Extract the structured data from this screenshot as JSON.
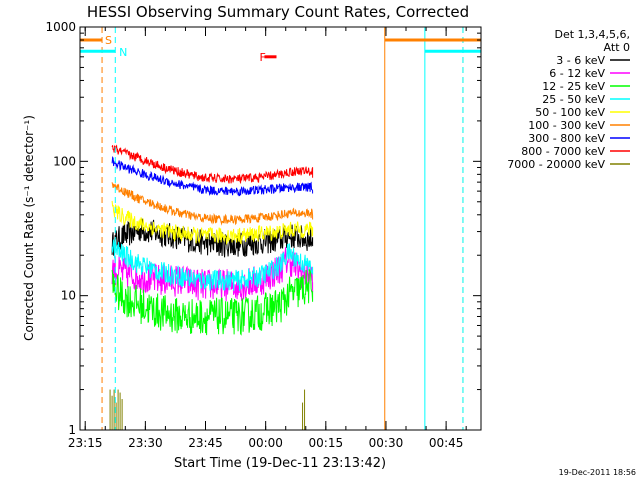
{
  "chart_data": {
    "type": "line",
    "title": "HESSI Observing Summary Count Rates, Corrected",
    "xlabel": "Start Time (19-Dec-11 23:13:42)",
    "ylabel": "Corrected Count Rate (s⁻¹ detector⁻¹)",
    "y_scale": "log",
    "ylim": [
      1,
      1000
    ],
    "y_ticks": [
      {
        "value": 1,
        "label": "1"
      },
      {
        "value": 10,
        "label": "10"
      },
      {
        "value": 100,
        "label": "100"
      },
      {
        "value": 1000,
        "label": "1000"
      }
    ],
    "x_unit": "minutes after 23:13:42",
    "xlim": [
      0,
      100
    ],
    "x_ticks": [
      {
        "t": 1.3,
        "label": "23:15"
      },
      {
        "t": 16.3,
        "label": "23:30"
      },
      {
        "t": 31.3,
        "label": "23:45"
      },
      {
        "t": 46.3,
        "label": "00:00"
      },
      {
        "t": 61.3,
        "label": "00:15"
      },
      {
        "t": 76.3,
        "label": "00:30"
      },
      {
        "t": 91.3,
        "label": "00:45"
      }
    ],
    "legend": {
      "header": [
        "Det 1,3,4,5,6,",
        "Att 0"
      ],
      "position": "right"
    },
    "series": [
      {
        "name": "3 - 6 keV",
        "color": "#000000",
        "t": [
          8,
          10,
          15,
          20,
          25,
          30,
          35,
          40,
          45,
          50,
          52,
          55,
          58
        ],
        "values": [
          24,
          27,
          31,
          29,
          27,
          25,
          24,
          24,
          25,
          26,
          28,
          27,
          26
        ]
      },
      {
        "name": "6 - 12 keV",
        "color": "#ff00ff",
        "t": [
          8,
          10,
          15,
          20,
          25,
          30,
          35,
          40,
          45,
          50,
          52,
          55,
          58
        ],
        "values": [
          16,
          15,
          14,
          13,
          13,
          12,
          12,
          12,
          13,
          16,
          19,
          15,
          14
        ]
      },
      {
        "name": "12 - 25 keV",
        "color": "#00ff00",
        "t": [
          8,
          10,
          15,
          20,
          25,
          30,
          35,
          40,
          45,
          50,
          52,
          55,
          58
        ],
        "values": [
          12,
          10,
          8.5,
          7.5,
          7,
          7,
          7,
          7,
          7.5,
          8.5,
          10,
          11,
          12
        ]
      },
      {
        "name": "25 - 50 keV",
        "color": "#00ffff",
        "t": [
          8,
          10,
          15,
          20,
          25,
          30,
          35,
          40,
          45,
          50,
          52,
          55,
          58
        ],
        "values": [
          23,
          21,
          17,
          15,
          14,
          13,
          13,
          13,
          14,
          17,
          21,
          18,
          16
        ]
      },
      {
        "name": "50 - 100 keV",
        "color": "#ffff00",
        "t": [
          8,
          10,
          15,
          20,
          25,
          30,
          35,
          40,
          45,
          50,
          52,
          55,
          58
        ],
        "values": [
          45,
          40,
          34,
          31,
          29,
          28,
          28,
          28,
          29,
          30,
          31,
          31,
          31
        ]
      },
      {
        "name": "100 - 300 keV",
        "color": "#ff8000",
        "t": [
          8,
          10,
          15,
          20,
          25,
          30,
          35,
          40,
          45,
          50,
          52,
          55,
          58
        ],
        "values": [
          68,
          62,
          52,
          46,
          41,
          38,
          37,
          37,
          38,
          40,
          41,
          41,
          41
        ]
      },
      {
        "name": "300 - 800 keV",
        "color": "#0000ff",
        "t": [
          8,
          10,
          15,
          20,
          25,
          30,
          35,
          40,
          45,
          50,
          52,
          55,
          58
        ],
        "values": [
          100,
          93,
          82,
          73,
          67,
          62,
          60,
          60,
          61,
          63,
          64,
          64,
          64
        ]
      },
      {
        "name": "800 - 7000 keV",
        "color": "#ff0000",
        "t": [
          8,
          10,
          15,
          20,
          25,
          30,
          35,
          40,
          45,
          50,
          52,
          55,
          58
        ],
        "values": [
          126,
          118,
          105,
          92,
          83,
          76,
          74,
          74,
          76,
          80,
          83,
          85,
          84
        ]
      },
      {
        "name": "7000 - 20000 keV",
        "color": "#808000",
        "t": [
          7.5,
          8,
          8.5,
          9,
          9.5,
          10,
          10.5,
          55.5,
          56
        ],
        "values": [
          2,
          1.8,
          2,
          1.6,
          2,
          1.9,
          1.7,
          1.6,
          2
        ]
      }
    ],
    "annotations": [
      {
        "label": "S",
        "color": "#ff8000",
        "t": 5.5,
        "level": 800
      },
      {
        "label": "N",
        "color": "#00ffff",
        "t": 9,
        "level": 650
      },
      {
        "label": "F",
        "color": "#ff0000",
        "t": 44,
        "level": 600
      }
    ],
    "state_bars": [
      {
        "color": "#ff8000",
        "t_start": 0,
        "t_end": 5.5,
        "level": 800
      },
      {
        "color": "#00ffff",
        "t_start": 0,
        "t_end": 8.8,
        "level": 660
      },
      {
        "color": "#ff8000",
        "t_start": 76,
        "t_end": 100,
        "level": 800
      },
      {
        "color": "#00ffff",
        "t_start": 86,
        "t_end": 100,
        "level": 660
      },
      {
        "color": "#ff0000",
        "t_start": 46,
        "t_end": 49,
        "level": 600
      }
    ],
    "vertical_markers": [
      {
        "t": 0,
        "color": "#00ffff",
        "dashed": false
      },
      {
        "t": 5.5,
        "color": "#ff8000",
        "dashed": true
      },
      {
        "t": 8.8,
        "color": "#00ffff",
        "dashed": true
      },
      {
        "t": 76,
        "color": "#ff8000",
        "dashed": false
      },
      {
        "t": 86,
        "color": "#00ffff",
        "dashed": false
      },
      {
        "t": 95.5,
        "color": "#ff8000",
        "dashed": true
      },
      {
        "t": 95.5,
        "color": "#00ffff",
        "dashed": true
      }
    ],
    "grid": false
  },
  "footer": {
    "date_stamp": "19-Dec-2011 18:56"
  }
}
